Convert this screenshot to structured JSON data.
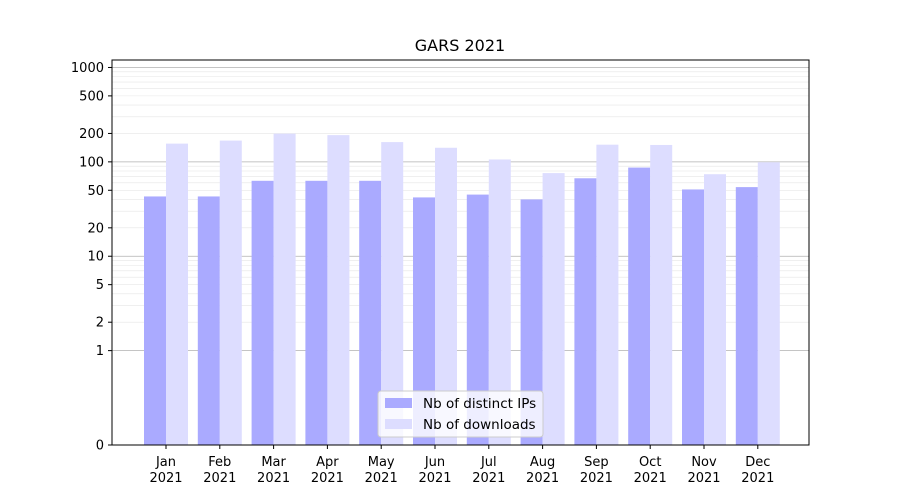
{
  "chart_data": {
    "type": "bar",
    "title": "GARS 2021",
    "xlabel": "",
    "ylabel": "",
    "yscale": "symlog",
    "ylim": [
      0,
      1200
    ],
    "categories": [
      {
        "month": "Jan",
        "year": "2021"
      },
      {
        "month": "Feb",
        "year": "2021"
      },
      {
        "month": "Mar",
        "year": "2021"
      },
      {
        "month": "Apr",
        "year": "2021"
      },
      {
        "month": "May",
        "year": "2021"
      },
      {
        "month": "Jun",
        "year": "2021"
      },
      {
        "month": "Jul",
        "year": "2021"
      },
      {
        "month": "Aug",
        "year": "2021"
      },
      {
        "month": "Sep",
        "year": "2021"
      },
      {
        "month": "Oct",
        "year": "2021"
      },
      {
        "month": "Nov",
        "year": "2021"
      },
      {
        "month": "Dec",
        "year": "2021"
      }
    ],
    "yticks": [
      "0",
      "1",
      "2",
      "5",
      "10",
      "20",
      "50",
      "100",
      "200",
      "500",
      "1000"
    ],
    "series": [
      {
        "name": "Nb of distinct IPs",
        "color": "#aaaaff",
        "values": [
          43,
          43,
          63,
          63,
          63,
          42,
          45,
          40,
          67,
          87,
          51,
          54
        ]
      },
      {
        "name": "Nb of downloads",
        "color": "#ddddff",
        "values": [
          156,
          168,
          199,
          192,
          162,
          141,
          106,
          76,
          152,
          151,
          74,
          99
        ]
      }
    ],
    "grid": true,
    "legend_position": "lower-center"
  }
}
